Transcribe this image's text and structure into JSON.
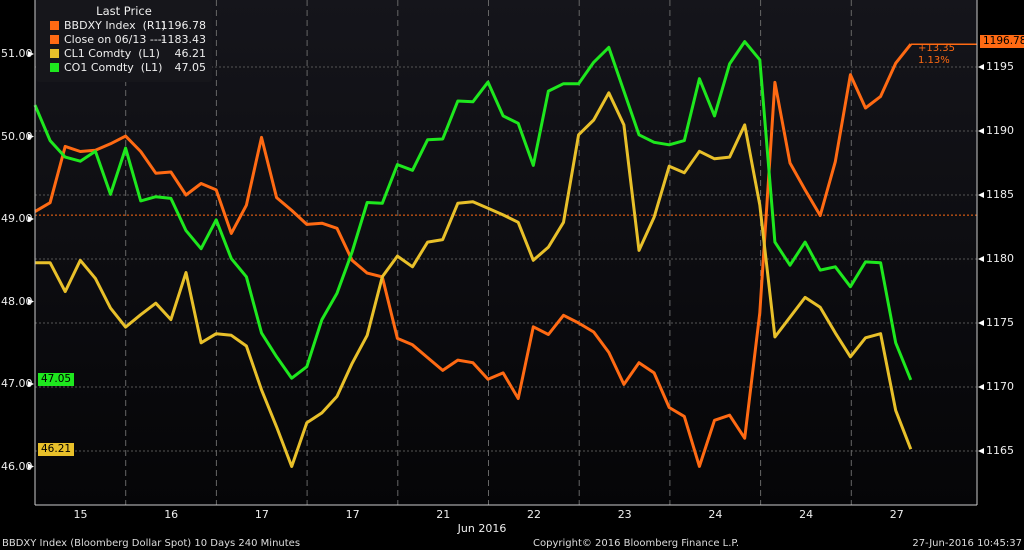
{
  "legend": {
    "title": "Last Price",
    "items": [
      {
        "name": "BBDXY Index  (R1)",
        "value": "1196.78",
        "color": "#ff6a13"
      },
      {
        "name": "Close on 06/13 ----",
        "value": "1183.43",
        "color": "#ff6a13"
      },
      {
        "name": "CL1 Comdty  (L1)",
        "value": "46.21",
        "color": "#e8c02a"
      },
      {
        "name": "CO1 Comdty  (L1)",
        "value": "47.05",
        "color": "#1ee81e"
      }
    ]
  },
  "badges": {
    "bbdxy": "1196.78",
    "co1": "47.05",
    "cl1": "46.21"
  },
  "annotation": {
    "change": "+13.35",
    "pct": "1.13%"
  },
  "footer": {
    "left": "BBDXY Index (Bloomberg Dollar Spot) 10 Days 240 Minutes",
    "center": "Copyright© 2016 Bloomberg Finance L.P.",
    "right": "27-Jun-2016 10:45:37"
  },
  "chart_data": {
    "type": "line",
    "xlabel": "Jun 2016",
    "x_tick_labels": [
      "15",
      "16",
      "17",
      "17",
      "21",
      "22",
      "23",
      "24",
      "24",
      "27"
    ],
    "left_axis": {
      "ticks": [
        "51.00",
        "50.00",
        "49.00",
        "48.00",
        "47.00",
        "46.00"
      ],
      "ylim": [
        45.6,
        51.6
      ]
    },
    "right_axis": {
      "ticks": [
        "1195",
        "1190",
        "1185",
        "1180",
        "1175",
        "1170",
        "1165"
      ],
      "ylim": [
        1160,
        1200
      ]
    },
    "reference_line": {
      "label": "Close on 06/13",
      "value": 1183.43,
      "axis": "right"
    },
    "series": [
      {
        "name": "BBDXY Index",
        "axis": "right",
        "color": "#ff6a13",
        "values": [
          1183.7,
          1184.4,
          1188.8,
          1188.4,
          1188.5,
          1189.0,
          1189.6,
          1188.4,
          1186.7,
          1186.8,
          1185.0,
          1185.9,
          1185.4,
          1182.0,
          1184.2,
          1189.5,
          1184.8,
          1183.8,
          1182.7,
          1182.8,
          1182.4,
          1179.9,
          1178.9,
          1178.6,
          1173.8,
          1173.3,
          1172.3,
          1171.3,
          1172.1,
          1171.9,
          1170.6,
          1171.1,
          1169.1,
          1174.7,
          1174.1,
          1175.6,
          1175.0,
          1174.3,
          1172.7,
          1170.2,
          1171.9,
          1171.1,
          1168.4,
          1167.7,
          1163.8,
          1167.4,
          1167.8,
          1166.0,
          1175.8,
          1193.8,
          1187.5,
          1185.4,
          1183.4,
          1187.6,
          1194.4,
          1191.8,
          1192.7,
          1195.3,
          1196.78
        ]
      },
      {
        "name": "CL1 Comdty",
        "axis": "left",
        "color": "#e8c02a",
        "values": [
          48.47,
          48.47,
          48.12,
          48.5,
          48.28,
          47.92,
          47.69,
          47.84,
          47.98,
          47.78,
          48.35,
          47.5,
          47.61,
          47.59,
          47.46,
          46.93,
          46.48,
          46.0,
          46.53,
          46.65,
          46.85,
          47.25,
          47.59,
          48.3,
          48.55,
          48.42,
          48.72,
          48.75,
          49.19,
          49.21,
          49.13,
          49.05,
          48.96,
          48.5,
          48.66,
          48.96,
          50.02,
          50.2,
          50.53,
          50.14,
          48.62,
          49.02,
          49.64,
          49.56,
          49.82,
          49.73,
          49.75,
          50.14,
          49.17,
          47.57,
          47.81,
          48.05,
          47.93,
          47.62,
          47.33,
          47.56,
          47.61,
          46.68,
          46.21
        ]
      },
      {
        "name": "CO1 Comdty",
        "axis": "left",
        "color": "#1ee81e",
        "values": [
          50.38,
          49.95,
          49.75,
          49.7,
          49.82,
          49.3,
          49.86,
          49.22,
          49.27,
          49.25,
          48.86,
          48.64,
          48.99,
          48.52,
          48.3,
          47.62,
          47.33,
          47.07,
          47.21,
          47.78,
          48.1,
          48.6,
          49.2,
          49.19,
          49.66,
          49.59,
          49.96,
          49.97,
          50.43,
          50.42,
          50.66,
          50.25,
          50.16,
          49.65,
          50.55,
          50.64,
          50.64,
          50.9,
          51.08,
          50.55,
          50.02,
          49.93,
          49.9,
          49.95,
          50.7,
          50.25,
          50.88,
          51.15,
          50.93,
          48.72,
          48.44,
          48.72,
          48.38,
          48.42,
          48.18,
          48.48,
          48.47,
          47.5,
          47.05
        ]
      }
    ]
  }
}
